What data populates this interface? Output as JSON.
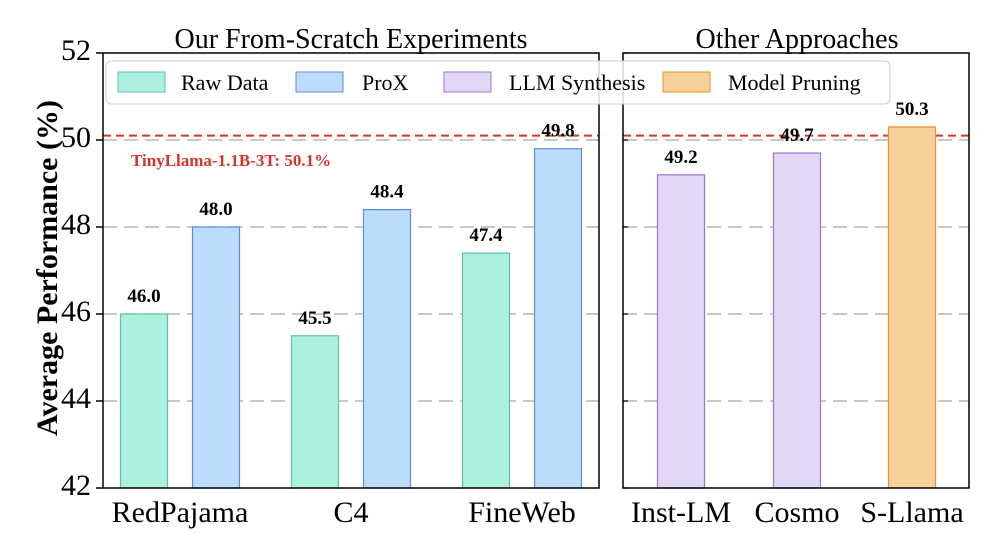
{
  "chart_data": {
    "type": "bar",
    "ylabel": "Average Performance (%)",
    "ylim": [
      42,
      52
    ],
    "yticks": [
      42,
      44,
      46,
      48,
      50,
      52
    ],
    "grid": "dashed-horizontal",
    "legend": {
      "placement": "top",
      "entries": [
        {
          "label": "Raw Data",
          "color": "#aef0e0",
          "edge": "#5cc2ad"
        },
        {
          "label": "ProX",
          "color": "#bcdcfb",
          "edge": "#5b8fd8"
        },
        {
          "label": "LLM Synthesis",
          "color": "#e3d7f6",
          "edge": "#9d75d9"
        },
        {
          "label": "Model Pruning",
          "color": "#f8d09c",
          "edge": "#e7961e"
        }
      ]
    },
    "reference_line": {
      "value": 50.1,
      "label": "TinyLlama-1.1B-3T: 50.1%",
      "color": "#d6352c"
    },
    "panels": [
      {
        "title": "Our From-Scratch Experiments",
        "categories": [
          "RedPajama",
          "C4",
          "FineWeb"
        ],
        "series": [
          {
            "name": "Raw Data",
            "values": [
              46.0,
              45.5,
              47.4
            ],
            "labels": [
              "46.0",
              "45.5",
              "47.4"
            ]
          },
          {
            "name": "ProX",
            "values": [
              48.0,
              48.4,
              49.8
            ],
            "labels": [
              "48.0",
              "48.4",
              "49.8"
            ]
          }
        ]
      },
      {
        "title": "Other Approaches",
        "categories": [
          "Inst-LM",
          "Cosmo",
          "S-Llama"
        ],
        "bars": [
          {
            "category": "Inst-LM",
            "series": "LLM Synthesis",
            "value": 49.2,
            "label": "49.2"
          },
          {
            "category": "Cosmo",
            "series": "LLM Synthesis",
            "value": 49.7,
            "label": "49.7"
          },
          {
            "category": "S-Llama",
            "series": "Model Pruning",
            "value": 50.3,
            "label": "50.3"
          }
        ]
      }
    ]
  }
}
